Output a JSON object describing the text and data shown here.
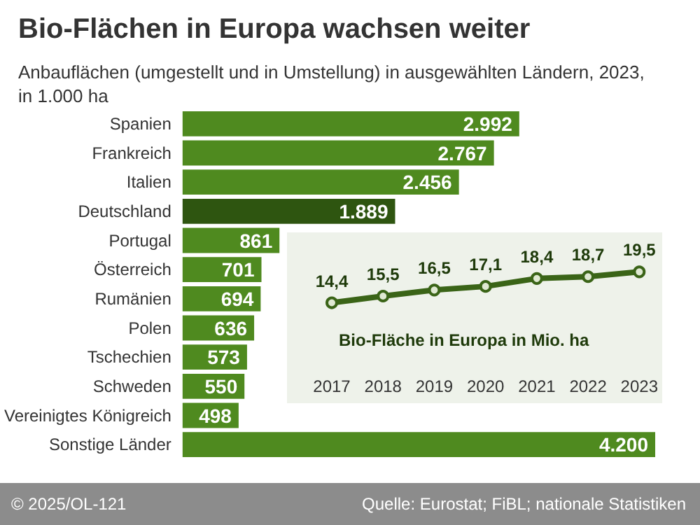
{
  "chart_data": [
    {
      "type": "bar",
      "orientation": "horizontal",
      "title": "Bio-Flächen in Europa wachsen weiter",
      "subtitle": "Anbauflächen (umgestellt und in Umstellung) in ausgewählten Ländern, 2023, in 1.000 ha",
      "categories": [
        "Spanien",
        "Frankreich",
        "Italien",
        "Deutschland",
        "Portugal",
        "Österreich",
        "Rumänien",
        "Polen",
        "Tschechien",
        "Schweden",
        "Vereinigtes Königreich",
        "Sonstige Länder"
      ],
      "values": [
        2992,
        2767,
        2456,
        1889,
        861,
        701,
        694,
        636,
        573,
        550,
        498,
        4200
      ],
      "value_labels": [
        "2.992",
        "2.767",
        "2.456",
        "1.889",
        "861",
        "701",
        "694",
        "636",
        "573",
        "550",
        "498",
        "4.200"
      ],
      "colors": [
        "#4f8a1f",
        "#4f8a1f",
        "#4f8a1f",
        "#2e5510",
        "#4f8a1f",
        "#4f8a1f",
        "#4f8a1f",
        "#4f8a1f",
        "#4f8a1f",
        "#4f8a1f",
        "#4f8a1f",
        "#4f8a1f"
      ],
      "tick_labels": "y",
      "grid": false,
      "annotations": [
        "© 2025/OL-121",
        "Quelle: Eurostat; FiBL; nationale Statistiken"
      ]
    },
    {
      "type": "line",
      "title": "Bio-Fläche in Europa in Mio. ha",
      "categories": [
        "2017",
        "2018",
        "2019",
        "2020",
        "2021",
        "2022",
        "2023"
      ],
      "series": [
        {
          "color": "#3a6417",
          "values": [
            14.4,
            15.5,
            16.5,
            17.1,
            18.4,
            18.7,
            19.5
          ],
          "value_labels": [
            "14,4",
            "15,5",
            "16,5",
            "17,1",
            "18,4",
            "18,7",
            "19,5"
          ]
        }
      ],
      "marker": "circle",
      "line_style": "solid",
      "grid": false,
      "tick_labels": "x"
    }
  ]
}
